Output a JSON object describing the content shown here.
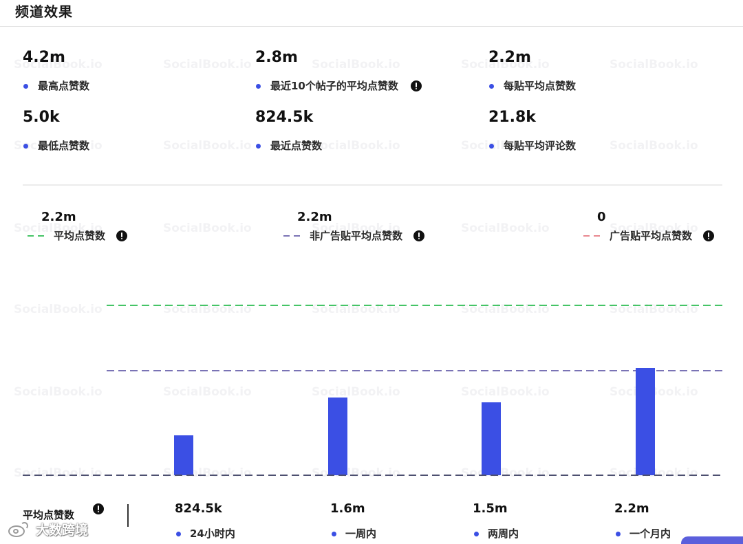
{
  "header": {
    "title": "频道效果"
  },
  "stats": [
    {
      "value": "4.2m",
      "label": "最高点赞数"
    },
    {
      "value": "2.8m",
      "label": "最近10个帖子的平均点赞数"
    },
    {
      "value": "2.2m",
      "label": "每贴平均点赞数"
    },
    {
      "value": "5.0k",
      "label": "最低点赞数"
    },
    {
      "value": "824.5k",
      "label": "最近点赞数"
    },
    {
      "value": "21.8k",
      "label": "每贴平均评论数"
    }
  ],
  "summary": {
    "label": "平均点赞数"
  },
  "chart_data": {
    "type": "bar",
    "categories": [
      "24小时内",
      "一周内",
      "两周内",
      "一个月内"
    ],
    "values": [
      824500,
      1600000,
      1500000,
      2200000
    ],
    "value_labels": [
      "824.5k",
      "1.6m",
      "1.5m",
      "2.2m"
    ],
    "bar_color": "#3b4fe4",
    "reference_lines": [
      {
        "name": "平均点赞数",
        "value": 2200000,
        "value_label": "2.2m",
        "color": "#45c466"
      },
      {
        "name": "非广告贴平均点赞数",
        "value": 2200000,
        "value_label": "2.2m",
        "color": "#7a73b5"
      },
      {
        "name": "广告贴平均点赞数",
        "value": 0,
        "value_label": "0",
        "color": "#e8878f"
      }
    ],
    "legend_position": "top",
    "grid": false
  },
  "colors": {
    "accent": "#3b4fe4",
    "baseline": "#4d5070",
    "corner_button": "#5b5fdc"
  },
  "icons": {
    "info": "info-icon",
    "bullet": "bullet-dot-icon",
    "source_logo": "weibo-logo-icon"
  },
  "watermark": "SocialBook.io",
  "source_logo": {
    "text": "大数跨境"
  }
}
